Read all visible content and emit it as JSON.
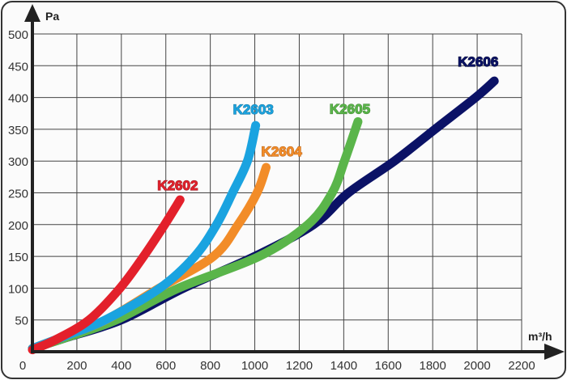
{
  "chart_data": {
    "type": "line",
    "xlabel": "m³/h",
    "ylabel": "Pa",
    "xlim": [
      0,
      2200
    ],
    "ylim": [
      0,
      500
    ],
    "xticks": [
      0,
      200,
      400,
      600,
      800,
      1000,
      1200,
      1400,
      1600,
      1800,
      2000,
      2200
    ],
    "yticks": [
      50,
      100,
      150,
      200,
      250,
      300,
      350,
      400,
      450,
      500
    ],
    "grid": true,
    "series": [
      {
        "name": "K2602",
        "color": "#e3202b",
        "label_color": "#a3242c",
        "x": [
          0,
          100,
          255,
          394,
          500,
          595,
          664
        ],
        "y": [
          3,
          18,
          50,
          100,
          150,
          200,
          239
        ]
      },
      {
        "name": "K2603",
        "color": "#1aa3e0",
        "label_color": "#1f7fa8",
        "x": [
          0,
          150,
          328,
          573,
          730,
          828,
          900,
          967,
          1004
        ],
        "y": [
          5,
          25,
          50,
          100,
          150,
          200,
          250,
          300,
          356
        ]
      },
      {
        "name": "K2604",
        "color": "#f28c28",
        "label_color": "#c06a1e",
        "x": [
          0,
          150,
          330,
          570,
          814,
          925,
          1010,
          1051
        ],
        "y": [
          5,
          25,
          50,
          100,
          150,
          200,
          250,
          290
        ]
      },
      {
        "name": "K2605",
        "color": "#5ab54a",
        "label_color": "#4a8f3c",
        "x": [
          0,
          150,
          377,
          657,
          1020,
          1239,
          1348,
          1403,
          1464
        ],
        "y": [
          5,
          22,
          50,
          100,
          150,
          200,
          250,
          300,
          362
        ]
      },
      {
        "name": "K2606",
        "color": "#0b1266",
        "label_color": "#0b1240",
        "x": [
          0,
          150,
          400,
          680,
          1000,
          1264,
          1421,
          1628,
          1810,
          1993,
          2077
        ],
        "y": [
          5,
          22,
          50,
          100,
          150,
          200,
          250,
          300,
          350,
          400,
          426
        ]
      }
    ]
  }
}
